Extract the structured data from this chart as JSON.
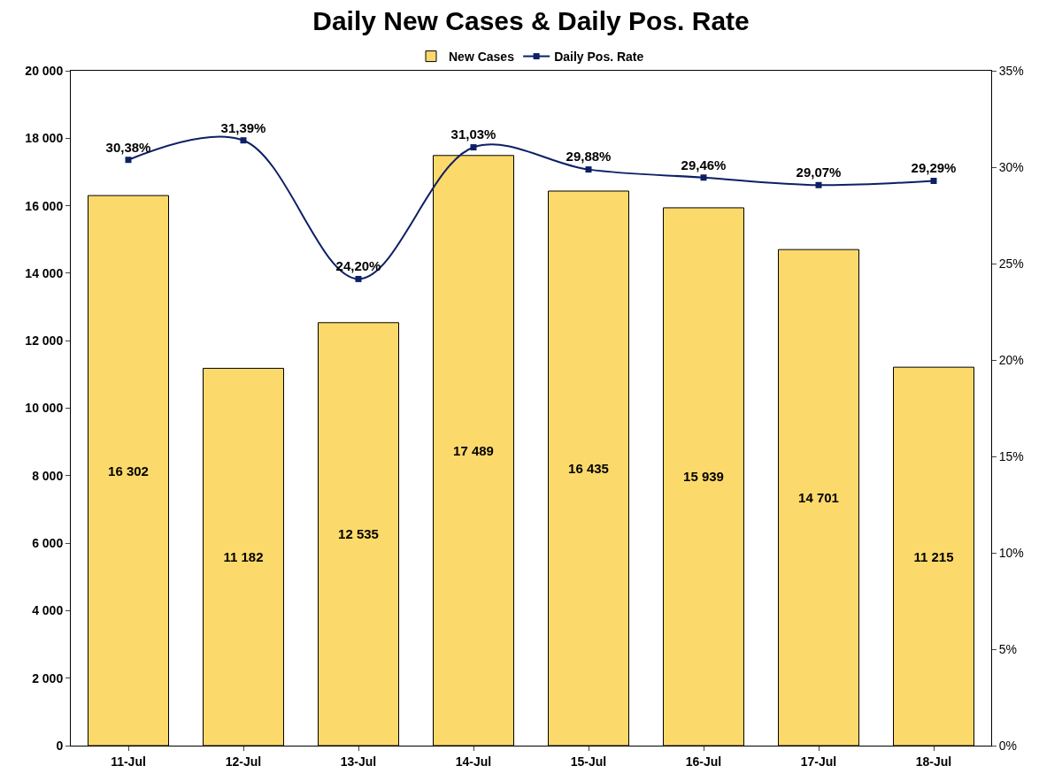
{
  "chart_data": {
    "type": "bar",
    "title": "Daily New Cases & Daily Pos. Rate",
    "categories": [
      "11-Jul",
      "12-Jul",
      "13-Jul",
      "14-Jul",
      "15-Jul",
      "16-Jul",
      "17-Jul",
      "18-Jul"
    ],
    "series": [
      {
        "name": "New Cases",
        "color": "#fcd96b",
        "values": [
          16302,
          11182,
          12535,
          17489,
          16435,
          15939,
          14701,
          11215
        ],
        "value_labels": [
          "16 302",
          "11 182",
          "12 535",
          "17 489",
          "16 435",
          "15 939",
          "14 701",
          "11 215"
        ]
      },
      {
        "name": "Daily Pos. Rate",
        "type": "line",
        "axis": "y2",
        "color": "#0d1f66",
        "marker": "square",
        "values": [
          30.38,
          31.39,
          24.2,
          31.03,
          29.88,
          29.46,
          29.07,
          29.29
        ],
        "value_labels": [
          "30,38%",
          "31,39%",
          "24,20%",
          "31,03%",
          "29,88%",
          "29,46%",
          "29,07%",
          "29,29%"
        ]
      }
    ],
    "ylim": [
      0,
      20000
    ],
    "yticks": [
      {
        "value": 0,
        "label": "0"
      },
      {
        "value": 2000,
        "label": "2 000"
      },
      {
        "value": 4000,
        "label": "4 000"
      },
      {
        "value": 6000,
        "label": "6 000"
      },
      {
        "value": 8000,
        "label": "8 000"
      },
      {
        "value": 10000,
        "label": "10 000"
      },
      {
        "value": 12000,
        "label": "12 000"
      },
      {
        "value": 14000,
        "label": "14 000"
      },
      {
        "value": 16000,
        "label": "16 000"
      },
      {
        "value": 18000,
        "label": "18 000"
      },
      {
        "value": 20000,
        "label": "20 000"
      }
    ],
    "y2lim": [
      0,
      35
    ],
    "y2ticks": [
      {
        "value": 0,
        "label": "0%"
      },
      {
        "value": 5,
        "label": "5%"
      },
      {
        "value": 10,
        "label": "10%"
      },
      {
        "value": 15,
        "label": "15%"
      },
      {
        "value": 20,
        "label": "20%"
      },
      {
        "value": 25,
        "label": "25%"
      },
      {
        "value": 30,
        "label": "30%"
      },
      {
        "value": 35,
        "label": "35%"
      }
    ],
    "grid": false,
    "legend": "top"
  }
}
